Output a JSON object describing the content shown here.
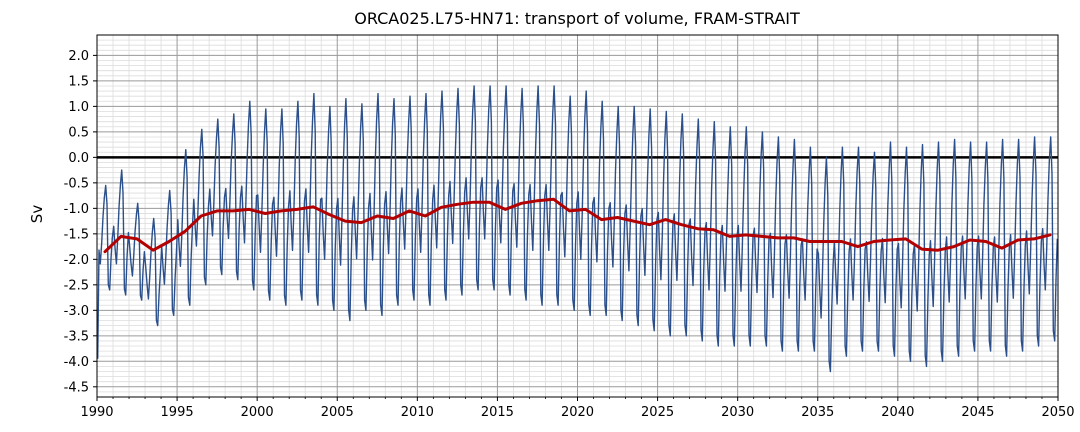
{
  "chart_data": {
    "type": "line",
    "title": "ORCA025.L75-HN71: transport of volume, FRAM-STRAIT",
    "xlabel": "",
    "ylabel": "Sv",
    "xlim": [
      1990,
      2050
    ],
    "ylim": [
      -4.7,
      2.4
    ],
    "x_ticks": [
      1990,
      1995,
      2000,
      2005,
      2010,
      2015,
      2020,
      2025,
      2030,
      2035,
      2040,
      2045,
      2050
    ],
    "y_ticks": [
      2.0,
      1.5,
      1.0,
      0.5,
      0.0,
      -0.5,
      -1.0,
      -1.5,
      -2.0,
      -2.5,
      -3.0,
      -3.5,
      -4.0,
      -4.5
    ],
    "grid": true,
    "zero_line": 0.0,
    "series": [
      {
        "kind": "monthly",
        "color": "#2b4f8a",
        "annual_mean_years": [
          1990.5,
          1991.5,
          1992.5,
          1993.5,
          1994.5,
          1995.5,
          1996.5,
          1997.5,
          1998.5,
          1999.5,
          2000.5,
          2001.5,
          2002.5,
          2003.5,
          2004.5,
          2005.5,
          2006.5,
          2007.5,
          2008.5,
          2009.5,
          2010.5,
          2011.5,
          2012.5,
          2013.5,
          2014.5,
          2015.5,
          2016.5,
          2017.5,
          2018.5,
          2019.5,
          2020.5,
          2021.5,
          2022.5,
          2023.5,
          2024.5,
          2025.5,
          2026.5,
          2027.5,
          2028.5,
          2029.5,
          2030.5,
          2031.5,
          2032.5,
          2033.5,
          2034.5,
          2035.5,
          2036.5,
          2037.5,
          2038.5,
          2039.5,
          2040.5,
          2041.5,
          2042.5,
          2043.5,
          2044.5,
          2045.5,
          2046.5,
          2047.5,
          2048.5,
          2049.5
        ],
        "annual_max": [
          -0.55,
          -0.25,
          -0.9,
          -1.2,
          -0.65,
          0.15,
          0.55,
          0.75,
          0.85,
          1.1,
          0.95,
          0.95,
          1.1,
          1.25,
          1.0,
          1.15,
          1.05,
          1.25,
          1.15,
          1.2,
          1.25,
          1.3,
          1.35,
          1.4,
          1.4,
          1.4,
          1.35,
          1.4,
          1.4,
          1.2,
          1.3,
          1.1,
          1.0,
          1.0,
          0.95,
          0.9,
          0.85,
          0.75,
          0.7,
          0.6,
          0.6,
          0.5,
          0.4,
          0.35,
          0.2,
          0.0,
          0.2,
          0.2,
          0.1,
          0.3,
          0.2,
          0.25,
          0.3,
          0.35,
          0.3,
          0.3,
          0.35,
          0.35,
          0.4,
          0.4
        ],
        "annual_min": [
          -2.6,
          -2.7,
          -2.8,
          -3.3,
          -3.1,
          -2.9,
          -2.5,
          -2.3,
          -2.4,
          -2.6,
          -2.8,
          -2.9,
          -2.8,
          -2.9,
          -3.0,
          -3.2,
          -3.0,
          -3.1,
          -2.9,
          -2.8,
          -2.9,
          -2.8,
          -2.7,
          -2.6,
          -2.6,
          -2.7,
          -2.8,
          -2.9,
          -2.9,
          -3.0,
          -3.1,
          -3.1,
          -3.2,
          -3.3,
          -3.4,
          -3.5,
          -3.5,
          -3.6,
          -3.7,
          -3.7,
          -3.7,
          -3.7,
          -3.8,
          -3.8,
          -3.8,
          -4.2,
          -3.9,
          -3.8,
          -3.8,
          -3.9,
          -4.0,
          -4.1,
          -4.0,
          -3.9,
          -3.8,
          -3.8,
          -3.9,
          -3.8,
          -3.7,
          -3.6
        ],
        "start_value": -3.95
      },
      {
        "kind": "annual",
        "color": "#b30000",
        "x": [
          1990.5,
          1991.5,
          1992.5,
          1993.5,
          1994.5,
          1995.5,
          1996.5,
          1997.5,
          1998.5,
          1999.5,
          2000.5,
          2001.5,
          2002.5,
          2003.5,
          2004.5,
          2005.5,
          2006.5,
          2007.5,
          2008.5,
          2009.5,
          2010.5,
          2011.5,
          2012.5,
          2013.5,
          2014.5,
          2015.5,
          2016.5,
          2017.5,
          2018.5,
          2019.5,
          2020.5,
          2021.5,
          2022.5,
          2023.5,
          2024.5,
          2025.5,
          2026.5,
          2027.5,
          2028.5,
          2029.5,
          2030.5,
          2031.5,
          2032.5,
          2033.5,
          2034.5,
          2035.5,
          2036.5,
          2037.5,
          2038.5,
          2039.5,
          2040.5,
          2041.5,
          2042.5,
          2043.5,
          2044.5,
          2045.5,
          2046.5,
          2047.5,
          2048.5,
          2049.5
        ],
        "values": [
          -1.85,
          -1.55,
          -1.6,
          -1.82,
          -1.65,
          -1.45,
          -1.15,
          -1.05,
          -1.05,
          -1.02,
          -1.1,
          -1.05,
          -1.02,
          -0.97,
          -1.12,
          -1.25,
          -1.28,
          -1.15,
          -1.2,
          -1.05,
          -1.15,
          -0.98,
          -0.92,
          -0.88,
          -0.88,
          -1.02,
          -0.9,
          -0.85,
          -0.82,
          -1.05,
          -1.02,
          -1.22,
          -1.18,
          -1.25,
          -1.32,
          -1.22,
          -1.32,
          -1.4,
          -1.42,
          -1.55,
          -1.52,
          -1.55,
          -1.58,
          -1.58,
          -1.65,
          -1.65,
          -1.65,
          -1.75,
          -1.65,
          -1.62,
          -1.6,
          -1.8,
          -1.82,
          -1.75,
          -1.62,
          -1.65,
          -1.78,
          -1.62,
          -1.6,
          -1.52
        ]
      }
    ]
  }
}
